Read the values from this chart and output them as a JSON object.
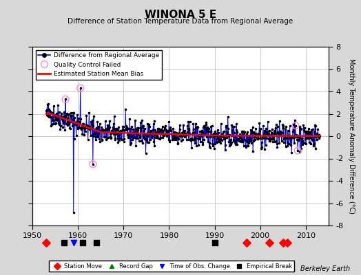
{
  "title": "WINONA 5 E",
  "subtitle": "Difference of Station Temperature Data from Regional Average",
  "ylabel": "Monthly Temperature Anomaly Difference (°C)",
  "xlim": [
    1950,
    2015
  ],
  "ylim": [
    -8,
    8
  ],
  "yticks": [
    -8,
    -6,
    -4,
    -2,
    0,
    2,
    4,
    6,
    8
  ],
  "xticks": [
    1950,
    1960,
    1970,
    1980,
    1990,
    2000,
    2010
  ],
  "bg_color": "#d8d8d8",
  "plot_bg_color": "#ffffff",
  "grid_color": "#b0b8b8",
  "line_color": "#0000ff",
  "bias_color": "#ff0000",
  "marker_color": "#000000",
  "qc_color": "#ff88cc",
  "station_move_years": [
    1953,
    1997,
    2002,
    2005,
    2006
  ],
  "record_gap_years": [],
  "obs_change_years": [
    1959
  ],
  "empirical_break_years": [
    1957,
    1961,
    1964,
    1990
  ],
  "watermark": "Berkeley Earth",
  "years_start": 1953,
  "years_end": 2013,
  "seed": 42
}
